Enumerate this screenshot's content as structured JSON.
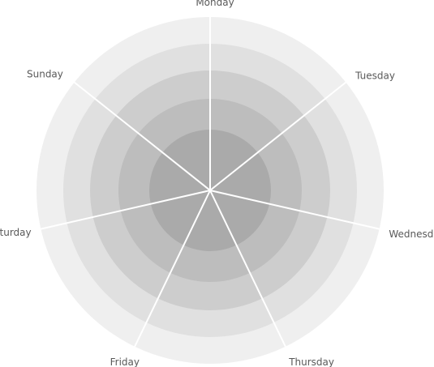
{
  "chart_data": {
    "type": "radar",
    "categories": [
      "Monday",
      "Tuesday",
      "Wednesday",
      "Thursday",
      "Friday",
      "Saturday",
      "Sunday"
    ],
    "series": [],
    "bands": 5,
    "band_colors": [
      "#efefef",
      "#e0e0e0",
      "#cdcdcd",
      "#bdbdbd",
      "#aaaaaa"
    ],
    "spoke_color": "#ffffff",
    "label_color": "#595959",
    "grid": true,
    "legend": "none"
  }
}
